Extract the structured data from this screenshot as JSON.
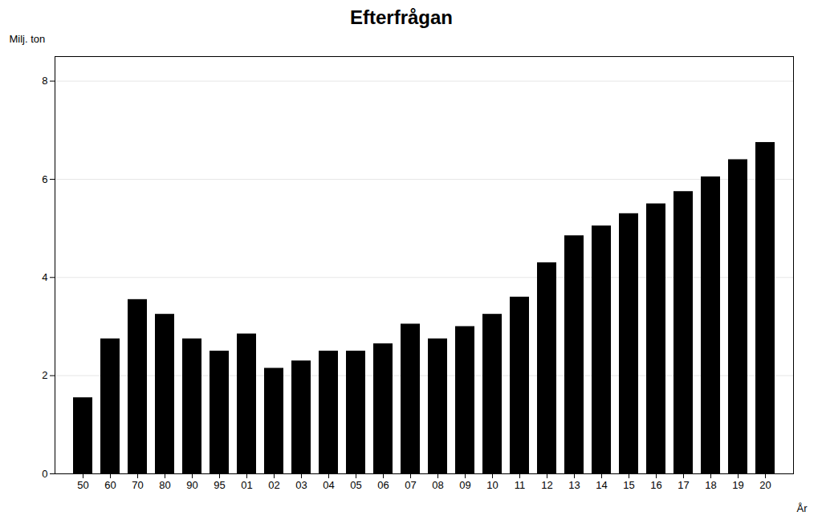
{
  "chart_data": {
    "type": "bar",
    "title": "Efterfrågan",
    "xlabel": "År",
    "ylabel": "Milj. ton",
    "categories": [
      "50",
      "60",
      "70",
      "80",
      "90",
      "95",
      "01",
      "02",
      "03",
      "04",
      "05",
      "06",
      "07",
      "08",
      "09",
      "10",
      "11",
      "12",
      "13",
      "14",
      "15",
      "16",
      "17",
      "18",
      "19",
      "20"
    ],
    "values": [
      1.55,
      2.75,
      3.55,
      3.25,
      2.75,
      2.5,
      2.85,
      2.15,
      2.3,
      2.5,
      2.5,
      2.65,
      3.05,
      2.75,
      3.0,
      3.25,
      3.6,
      4.3,
      4.85,
      5.05,
      5.3,
      5.5,
      5.75,
      6.05,
      6.4,
      6.75
    ],
    "ylim": [
      0,
      8.5
    ],
    "yticks": [
      0,
      2,
      4,
      6,
      8
    ],
    "grid": true
  }
}
